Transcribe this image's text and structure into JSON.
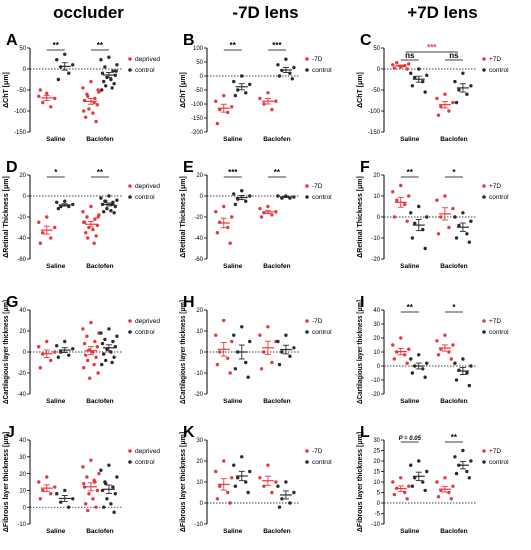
{
  "column_headers": [
    "occluder",
    "-7D lens",
    "+7D lens"
  ],
  "colors": {
    "treated": "#e8383d",
    "control": "#2b2b2b",
    "sig_red": "#e8383d"
  },
  "chart_data": [
    {
      "letter": "A",
      "type": "scatter",
      "ylabel": "ΔChT [μm]",
      "ylim": [
        -150,
        50
      ],
      "yticks": [
        -150,
        -100,
        -50,
        0,
        50
      ],
      "categories": [
        "Saline",
        "Baclofen"
      ],
      "legend": [
        "deprived",
        "control"
      ],
      "series": [
        {
          "name": "deprived",
          "groups": [
            [
              -58,
              -65,
              -70,
              -80,
              -90,
              -50
            ],
            [
              -30,
              -45,
              -55,
              -60,
              -70,
              -75,
              -85,
              -95,
              -105,
              -115,
              -125,
              -65,
              -80,
              -100,
              -50
            ]
          ]
        },
        {
          "name": "control",
          "groups": [
            [
              35,
              22,
              10,
              5,
              -10,
              -25
            ],
            [
              28,
              22,
              10,
              5,
              -5,
              -10,
              -15,
              -20,
              -25,
              -30,
              -35,
              -40,
              -45,
              -50,
              -5
            ]
          ]
        }
      ],
      "brackets": [
        {
          "cat": 0,
          "label": "**",
          "red": false
        },
        {
          "cat": 1,
          "label": "**",
          "red": false
        }
      ]
    },
    {
      "letter": "B",
      "type": "scatter",
      "ylabel": "ΔChT [μm]",
      "ylim": [
        -200,
        100
      ],
      "yticks": [
        -200,
        -150,
        -100,
        -50,
        0,
        50,
        100
      ],
      "categories": [
        "Saline",
        "Baclofen"
      ],
      "legend": [
        "-7D",
        "control"
      ],
      "series": [
        {
          "name": "-7D",
          "groups": [
            [
              -70,
              -90,
              -110,
              -120,
              -130,
              -170
            ],
            [
              -60,
              -80,
              -90,
              -100,
              -120
            ]
          ]
        },
        {
          "name": "control",
          "groups": [
            [
              0,
              -20,
              -30,
              -50,
              -60,
              -70
            ],
            [
              60,
              40,
              30,
              20,
              10,
              0,
              -10
            ]
          ]
        }
      ],
      "brackets": [
        {
          "cat": 0,
          "label": "**",
          "red": false
        },
        {
          "cat": 1,
          "label": "***",
          "red": false
        }
      ]
    },
    {
      "letter": "C",
      "type": "scatter",
      "ylabel": "ΔChT [μm]",
      "ylim": [
        -150,
        50
      ],
      "yticks": [
        -150,
        -100,
        -50,
        0,
        50
      ],
      "categories": [
        "Saline",
        "Baclofen"
      ],
      "legend": [
        "+7D",
        "control"
      ],
      "series": [
        {
          "name": "+7D",
          "groups": [
            [
              5,
              10,
              12,
              15,
              8,
              2,
              0
            ],
            [
              -60,
              -70,
              -80,
              -90,
              -100,
              -110
            ]
          ]
        },
        {
          "name": "control",
          "groups": [
            [
              0,
              -10,
              -15,
              -20,
              -30,
              -40,
              -55
            ],
            [
              -10,
              -30,
              -40,
              -50,
              -60,
              -80
            ]
          ]
        }
      ],
      "brackets": [
        {
          "cat": 0,
          "label": "ns",
          "red": false
        },
        {
          "cat": 1,
          "label": "ns",
          "red": false
        },
        {
          "span": [
            0,
            1
          ],
          "label": "***",
          "red": true
        }
      ]
    },
    {
      "letter": "D",
      "type": "scatter",
      "ylabel": "ΔRetinal Thickness [μm]",
      "ylim": [
        -60,
        20
      ],
      "yticks": [
        -60,
        -40,
        -20,
        0,
        20
      ],
      "categories": [
        "Saline",
        "Baclofen"
      ],
      "legend": [
        "deprived",
        "control"
      ],
      "series": [
        {
          "name": "deprived",
          "groups": [
            [
              -20,
              -25,
              -30,
              -35,
              -40,
              -45
            ],
            [
              -10,
              -15,
              -18,
              -20,
              -22,
              -25,
              -28,
              -30,
              -32,
              -35,
              -38,
              -40,
              -45,
              -25,
              -20
            ]
          ]
        },
        {
          "name": "control",
          "groups": [
            [
              -5,
              -6,
              -8,
              -10,
              -10,
              -12
            ],
            [
              0,
              -2,
              -4,
              -5,
              -6,
              -8,
              -10,
              -12,
              -14,
              -15,
              -16,
              -5,
              -8
            ]
          ]
        }
      ],
      "brackets": [
        {
          "cat": 0,
          "label": "*",
          "red": false
        },
        {
          "cat": 1,
          "label": "**",
          "red": false
        }
      ]
    },
    {
      "letter": "E",
      "type": "scatter",
      "ylabel": "ΔRetinal Thickness [μm]",
      "ylim": [
        -60,
        20
      ],
      "yticks": [
        -60,
        -40,
        -20,
        0,
        20
      ],
      "categories": [
        "Saline",
        "Baclofen"
      ],
      "legend": [
        "-7D",
        "control"
      ],
      "series": [
        {
          "name": "-7D",
          "groups": [
            [
              -10,
              -15,
              -20,
              -25,
              -30,
              -35,
              -45
            ],
            [
              -10,
              -12,
              -15,
              -16,
              -18,
              -20
            ]
          ]
        },
        {
          "name": "control",
          "groups": [
            [
              5,
              2,
              0,
              -3,
              -5,
              -8
            ],
            [
              0,
              0,
              -1,
              -2,
              -2
            ]
          ]
        }
      ],
      "brackets": [
        {
          "cat": 0,
          "label": "***",
          "red": false
        },
        {
          "cat": 1,
          "label": "**",
          "red": false
        }
      ]
    },
    {
      "letter": "F",
      "type": "scatter",
      "ylabel": "ΔRetinal Thickness [μm]",
      "ylim": [
        -20,
        20
      ],
      "yticks": [
        -20,
        -10,
        0,
        10,
        20
      ],
      "categories": [
        "Saline",
        "Baclofen"
      ],
      "legend": [
        "+7D",
        "control"
      ],
      "series": [
        {
          "name": "+7D",
          "groups": [
            [
              15,
              12,
              10,
              8,
              6,
              0,
              -2
            ],
            [
              10,
              8,
              4,
              0,
              -5,
              -8
            ]
          ]
        },
        {
          "name": "control",
          "groups": [
            [
              5,
              2,
              0,
              -3,
              -6,
              -10,
              -15
            ],
            [
              2,
              0,
              -2,
              -4,
              -8,
              -10,
              -12
            ]
          ]
        }
      ],
      "brackets": [
        {
          "cat": 0,
          "label": "**",
          "red": false
        },
        {
          "cat": 1,
          "label": "*",
          "red": false
        }
      ]
    },
    {
      "letter": "G",
      "type": "scatter",
      "ylabel": "ΔCartilagious layer thickness [μm]",
      "ylim": [
        -40,
        40
      ],
      "yticks": [
        -40,
        -20,
        0,
        20,
        40
      ],
      "categories": [
        "Saline",
        "Baclofen"
      ],
      "legend": [
        "deprived",
        "control"
      ],
      "series": [
        {
          "name": "deprived",
          "groups": [
            [
              10,
              5,
              0,
              -2,
              -8,
              -15
            ],
            [
              28,
              22,
              18,
              15,
              10,
              8,
              5,
              2,
              0,
              -3,
              -5,
              -8,
              -12,
              -15,
              -20,
              -25
            ]
          ]
        },
        {
          "name": "control",
          "groups": [
            [
              10,
              6,
              3,
              0,
              -3,
              -5
            ],
            [
              22,
              18,
              15,
              12,
              10,
              8,
              5,
              3,
              0,
              -2,
              -5,
              -8,
              -10,
              -12
            ]
          ]
        }
      ],
      "brackets": []
    },
    {
      "letter": "H",
      "type": "scatter",
      "ylabel": "ΔCartilagious layer thickness [μm]",
      "ylim": [
        -20,
        20
      ],
      "yticks": [
        -20,
        -10,
        0,
        10,
        20
      ],
      "categories": [
        "Saline",
        "Baclofen"
      ],
      "legend": [
        "-7D",
        "control"
      ],
      "series": [
        {
          "name": "-7D",
          "groups": [
            [
              15,
              8,
              5,
              0,
              -3,
              -6,
              -10
            ],
            [
              12,
              8,
              5,
              0,
              -5,
              -8
            ]
          ]
        },
        {
          "name": "control",
          "groups": [
            [
              12,
              8,
              5,
              0,
              -5,
              -8,
              -12
            ],
            [
              8,
              5,
              2,
              0,
              -2,
              -6
            ]
          ]
        }
      ],
      "brackets": []
    },
    {
      "letter": "I",
      "type": "scatter",
      "ylabel": "ΔCartilagious layer thickness [μm]",
      "ylim": [
        -20,
        40
      ],
      "yticks": [
        -20,
        -10,
        0,
        10,
        20,
        30,
        40
      ],
      "categories": [
        "Saline",
        "Baclofen"
      ],
      "legend": [
        "+7D",
        "control"
      ],
      "series": [
        {
          "name": "+7D",
          "groups": [
            [
              20,
              15,
              12,
              10,
              8,
              5,
              2
            ],
            [
              22,
              18,
              15,
              12,
              10,
              8,
              5
            ]
          ]
        },
        {
          "name": "control",
          "groups": [
            [
              8,
              5,
              2,
              0,
              -2,
              -5,
              -8
            ],
            [
              5,
              2,
              0,
              -3,
              -5,
              -10,
              -14
            ]
          ]
        }
      ],
      "brackets": [
        {
          "cat": 0,
          "label": "**",
          "red": false
        },
        {
          "cat": 1,
          "label": "*",
          "red": false
        }
      ]
    },
    {
      "letter": "J",
      "type": "scatter",
      "ylabel": "ΔFibrous layer thickness [μm]",
      "ylim": [
        -10,
        40
      ],
      "yticks": [
        -10,
        0,
        10,
        20,
        30,
        40
      ],
      "categories": [
        "Saline",
        "Baclofen"
      ],
      "legend": [
        "deprived",
        "control"
      ],
      "series": [
        {
          "name": "deprived",
          "groups": [
            [
              18,
              15,
              12,
              10,
              8,
              5
            ],
            [
              28,
              24,
              20,
              18,
              15,
              12,
              10,
              8,
              5,
              2,
              0,
              -2,
              16,
              14
            ]
          ]
        },
        {
          "name": "control",
          "groups": [
            [
              10,
              8,
              5,
              3,
              0
            ],
            [
              25,
              22,
              18,
              15,
              12,
              10,
              8,
              5,
              2,
              0,
              -3,
              14
            ]
          ]
        }
      ],
      "brackets": []
    },
    {
      "letter": "K",
      "type": "scatter",
      "ylabel": "ΔFibrous layer thickness [μm]",
      "ylim": [
        -10,
        30
      ],
      "yticks": [
        -10,
        0,
        10,
        20,
        30
      ],
      "categories": [
        "Saline",
        "Baclofen"
      ],
      "legend": [
        "-7D",
        "control"
      ],
      "series": [
        {
          "name": "-7D",
          "groups": [
            [
              20,
              15,
              12,
              8,
              5,
              2,
              0
            ],
            [
              18,
              12,
              10,
              8,
              5
            ]
          ]
        },
        {
          "name": "control",
          "groups": [
            [
              22,
              18,
              15,
              12,
              10,
              8,
              5
            ],
            [
              10,
              8,
              5,
              2,
              0,
              -2
            ]
          ]
        }
      ],
      "brackets": []
    },
    {
      "letter": "L",
      "type": "scatter",
      "ylabel": "ΔFibrous layer thickness [μm]",
      "ylim": [
        -10,
        30
      ],
      "yticks": [
        -10,
        -5,
        0,
        5,
        10,
        15,
        20,
        25,
        30
      ],
      "categories": [
        "Saline",
        "Baclofen"
      ],
      "legend": [
        "+7D",
        "control"
      ],
      "series": [
        {
          "name": "+7D",
          "groups": [
            [
              12,
              10,
              8,
              7,
              5,
              4,
              2
            ],
            [
              12,
              10,
              8,
              6,
              5,
              3,
              2
            ]
          ]
        },
        {
          "name": "control",
          "groups": [
            [
              20,
              18,
              15,
              12,
              10,
              8,
              6
            ],
            [
              25,
              22,
              20,
              18,
              15,
              14,
              12
            ]
          ]
        }
      ],
      "brackets": [
        {
          "cat": 0,
          "label": "P = 0.05",
          "red": false
        },
        {
          "cat": 1,
          "label": "**",
          "red": false
        }
      ]
    }
  ]
}
